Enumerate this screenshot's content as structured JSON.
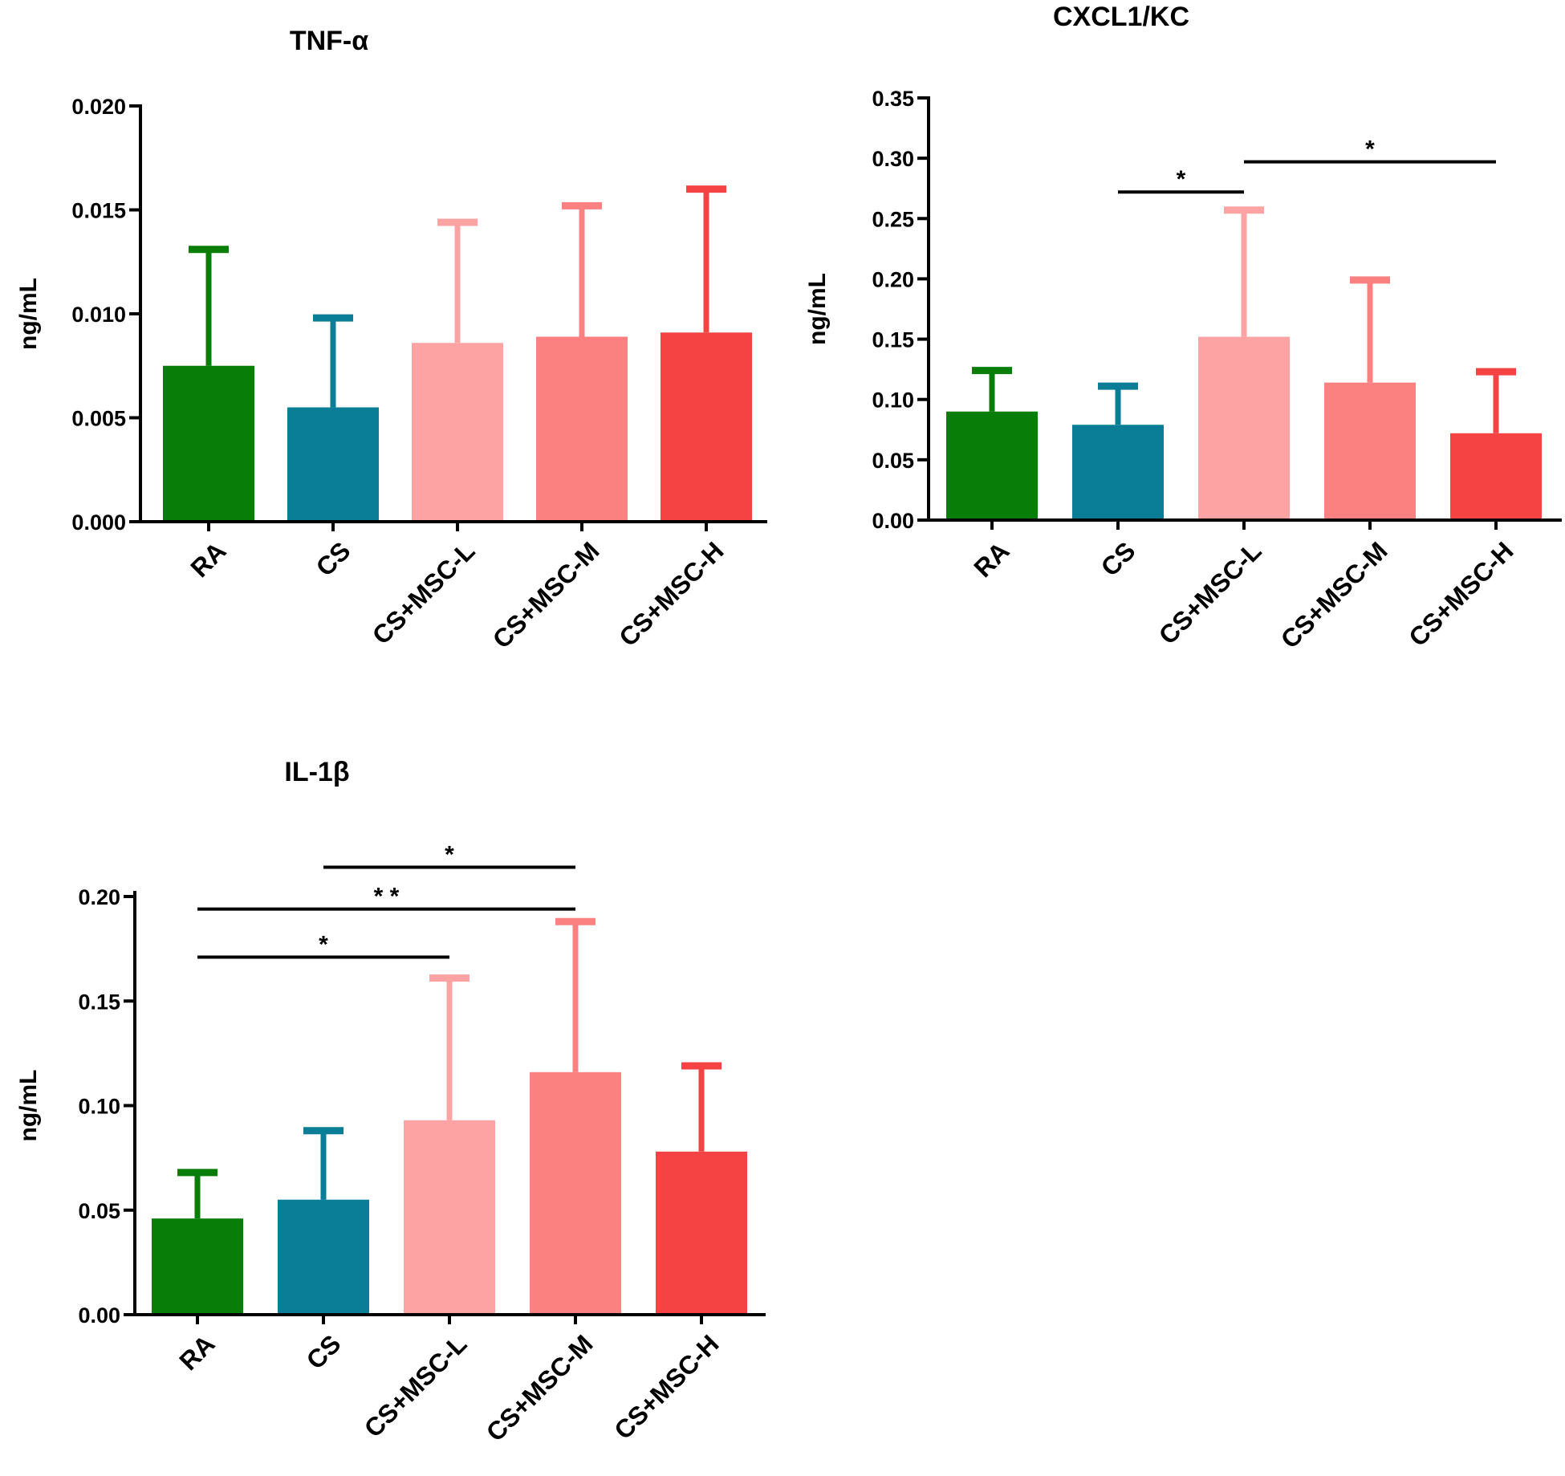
{
  "colors": {
    "RA": "#087d08",
    "CS": "#0a7d97",
    "CS+MSC-L": "#fda3a3",
    "CS+MSC-M": "#fb8181",
    "CS+MSC-H": "#f54242",
    "axis": "#000000"
  },
  "chart_data": [
    {
      "id": "tnf",
      "type": "bar",
      "title": "TNF-α",
      "xlabel": "",
      "ylabel": "ng/mL",
      "categories": [
        "RA",
        "CS",
        "CS+MSC-L",
        "CS+MSC-M",
        "CS+MSC-H"
      ],
      "values": [
        0.0075,
        0.0055,
        0.0086,
        0.0089,
        0.0091
      ],
      "error_upper": [
        0.0131,
        0.0098,
        0.0144,
        0.0152,
        0.016
      ],
      "ylim": [
        0,
        0.02
      ],
      "yticks": [
        0.0,
        0.005,
        0.01,
        0.015,
        0.02
      ],
      "ytick_labels": [
        "0.000",
        "0.005",
        "0.010",
        "0.015",
        "0.020"
      ],
      "significance": []
    },
    {
      "id": "cxcl1",
      "type": "bar",
      "title": "CXCL1/KC",
      "xlabel": "",
      "ylabel": "ng/mL",
      "categories": [
        "RA",
        "CS",
        "CS+MSC-L",
        "CS+MSC-M",
        "CS+MSC-H"
      ],
      "values": [
        0.09,
        0.079,
        0.152,
        0.114,
        0.072
      ],
      "error_upper": [
        0.124,
        0.111,
        0.257,
        0.199,
        0.123
      ],
      "ylim": [
        0,
        0.35
      ],
      "yticks": [
        0.0,
        0.05,
        0.1,
        0.15,
        0.2,
        0.25,
        0.3,
        0.35
      ],
      "ytick_labels": [
        "0.00",
        "0.05",
        "0.10",
        "0.15",
        "0.20",
        "0.25",
        "0.30",
        "0.35"
      ],
      "significance": [
        {
          "from": 1,
          "to": 2,
          "y": 0.272,
          "label": "*"
        },
        {
          "from": 2,
          "to": 4,
          "y": 0.297,
          "label": "*"
        }
      ]
    },
    {
      "id": "il1b",
      "type": "bar",
      "title": "IL-1β",
      "xlabel": "",
      "ylabel": "ng/mL",
      "categories": [
        "RA",
        "CS",
        "CS+MSC-L",
        "CS+MSC-M",
        "CS+MSC-H"
      ],
      "values": [
        0.046,
        0.055,
        0.093,
        0.116,
        0.078
      ],
      "error_upper": [
        0.068,
        0.088,
        0.161,
        0.188,
        0.119
      ],
      "ylim": [
        0,
        0.2
      ],
      "yticks": [
        0.0,
        0.05,
        0.1,
        0.15,
        0.2
      ],
      "ytick_labels": [
        "0.00",
        "0.05",
        "0.10",
        "0.15",
        "0.20"
      ],
      "significance": [
        {
          "from": 1,
          "to": 3,
          "y": 0.214,
          "label": "*"
        },
        {
          "from": 0,
          "to": 3,
          "y": 0.194,
          "label": "* *"
        },
        {
          "from": 0,
          "to": 2,
          "y": 0.171,
          "label": "*"
        }
      ]
    }
  ]
}
